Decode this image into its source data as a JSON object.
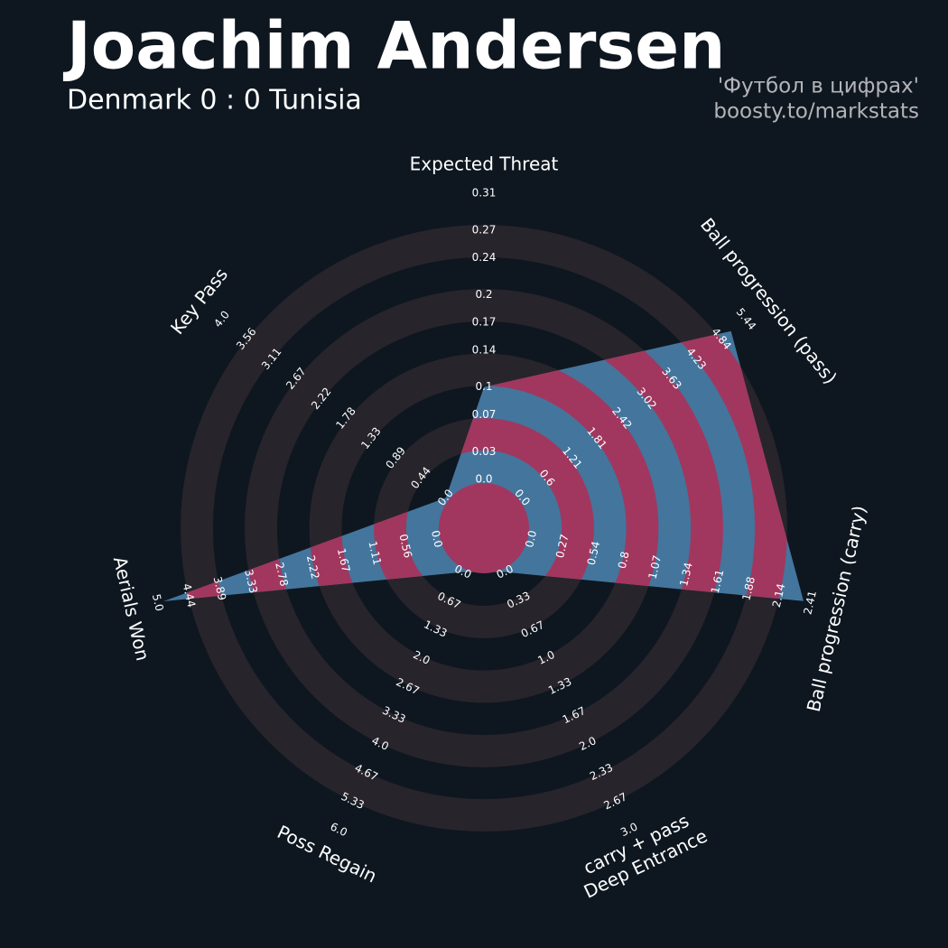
{
  "chart_data": {
    "type": "radar",
    "title": "Joachim Andersen",
    "subtitle": "Denmark 0 : 0 Tunisia",
    "color": "#44759d",
    "alt_color": "#a1375e",
    "params": [
      {
        "label": "Expected Threat",
        "lim": [
          0,
          0.31
        ],
        "ticks": [
          {
            "value": 0,
            "label": "0.0"
          },
          0.03,
          0.07,
          0.1,
          0.14,
          0.17,
          0.2,
          0.24,
          0.27,
          0.31
        ]
      },
      {
        "label": "Ball progression (pass)",
        "lim": [
          0,
          5.44
        ],
        "ticks": [
          {
            "value": 0,
            "label": "0.0"
          },
          0.6,
          1.21,
          1.81,
          2.42,
          3.02,
          3.63,
          4.23,
          4.84,
          5.44
        ]
      },
      {
        "label": "Ball progression (carry)",
        "lim": [
          0,
          2.41
        ],
        "ticks": [
          {
            "value": 0,
            "label": "0.0"
          },
          0.27,
          0.54,
          0.8,
          1.07,
          1.34,
          1.61,
          1.88,
          2.14,
          2.41
        ]
      },
      {
        "label": [
          "Deep Entrance",
          "carry + pass"
        ],
        "lim": [
          0,
          3
        ],
        "ticks": [
          {
            "value": 0,
            "label": "0.0"
          },
          0.33,
          0.67,
          {
            "value": 1,
            "label": "1.0"
          },
          1.33,
          1.67,
          {
            "value": 2,
            "label": "2.0"
          },
          2.33,
          2.67,
          {
            "value": 3,
            "label": "3.0"
          }
        ]
      },
      {
        "label": "Poss Regain",
        "lim": [
          0,
          6
        ],
        "ticks": [
          {
            "value": 0,
            "label": "0.0"
          },
          0.67,
          1.33,
          {
            "value": 2,
            "label": "2.0"
          },
          2.67,
          3.33,
          {
            "value": 4,
            "label": "4.0"
          },
          4.67,
          5.33,
          {
            "value": 6,
            "label": "6.0"
          }
        ]
      },
      {
        "label": "Aerials Won",
        "lim": [
          0,
          5
        ],
        "ticks": [
          {
            "value": 0,
            "label": "0.0"
          },
          0.56,
          1.11,
          1.67,
          2.22,
          2.78,
          3.33,
          3.89,
          4.44,
          {
            "value": 5,
            "label": "5.0"
          }
        ]
      },
      {
        "label": "Key Pass",
        "lim": [
          0,
          4
        ],
        "ticks": [
          {
            "value": 0,
            "label": "0.0"
          },
          0.44,
          0.89,
          1.33,
          1.78,
          2.22,
          2.67,
          3.11,
          3.56,
          {
            "value": 4,
            "label": "4.0"
          }
        ]
      }
    ],
    "values": [
      0.1,
      5.08,
      2.35,
      0,
      0,
      4.89,
      0
    ]
  },
  "credits": [
    "'Футбол в цифрах'",
    "boosty.to/markstats"
  ]
}
